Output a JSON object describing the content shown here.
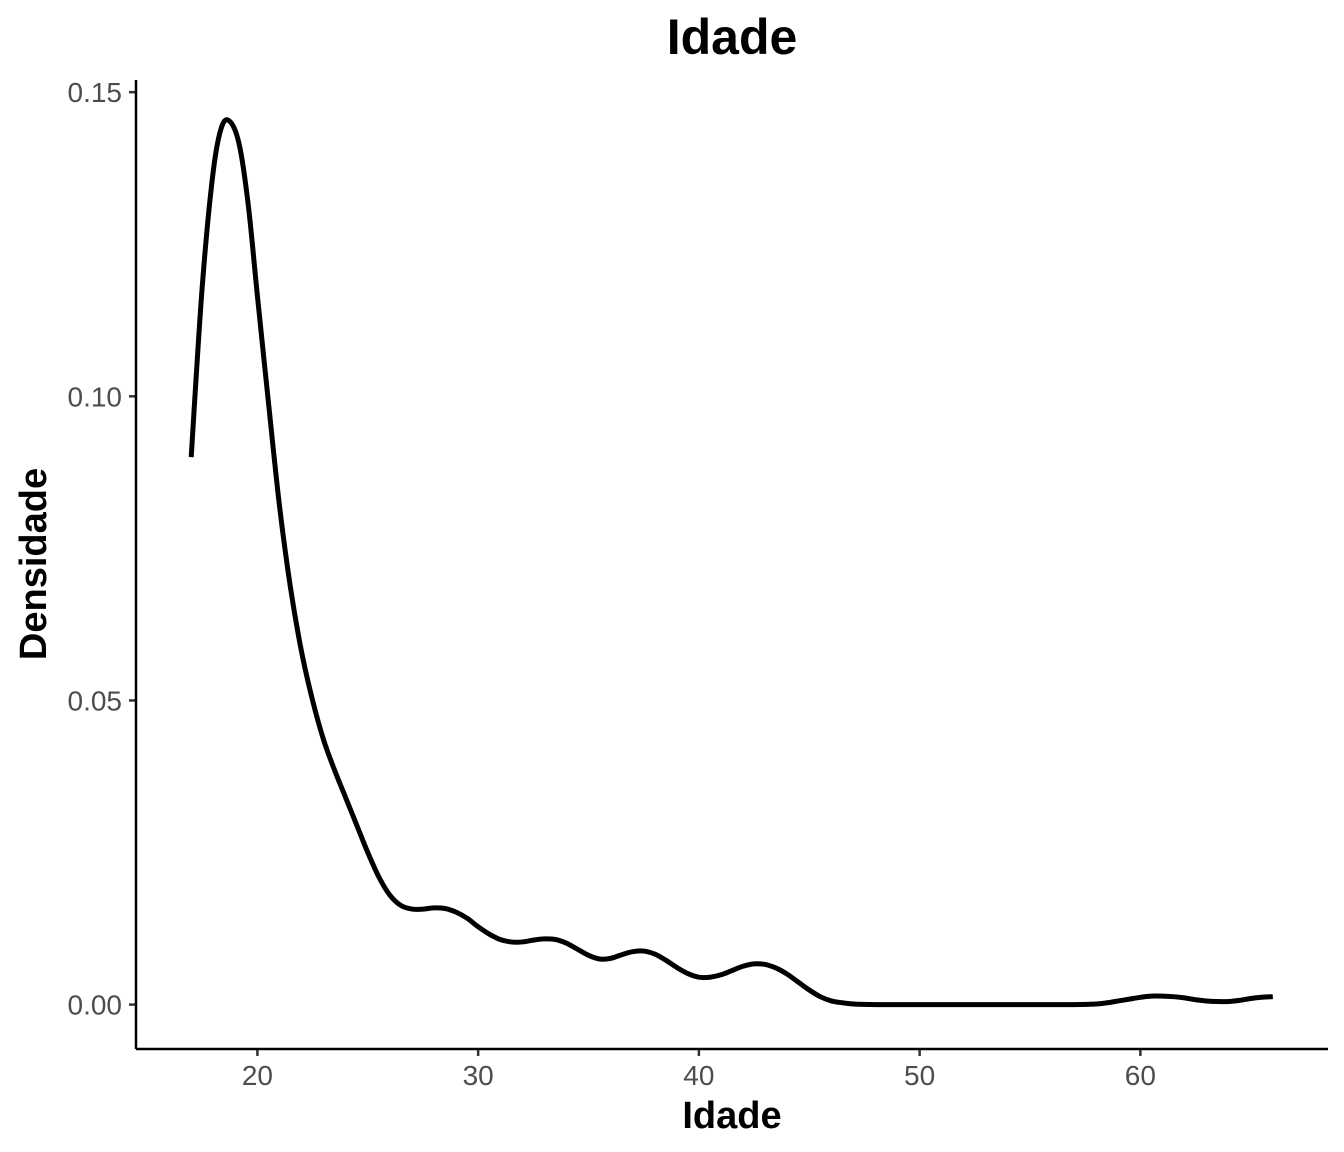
{
  "chart_data": {
    "type": "line",
    "title": "Idade",
    "xlabel": "Idade",
    "ylabel": "Densidade",
    "xlim": [
      14.5,
      68.5
    ],
    "ylim": [
      -0.0073,
      0.152
    ],
    "x_ticks": [
      {
        "value": 20,
        "label": "20"
      },
      {
        "value": 30,
        "label": "30"
      },
      {
        "value": 40,
        "label": "40"
      },
      {
        "value": 50,
        "label": "50"
      },
      {
        "value": 60,
        "label": "60"
      }
    ],
    "y_ticks": [
      {
        "value": 0.0,
        "label": "0.00"
      },
      {
        "value": 0.05,
        "label": "0.05"
      },
      {
        "value": 0.1,
        "label": "0.10"
      },
      {
        "value": 0.15,
        "label": "0.15"
      }
    ],
    "grid": false,
    "series": [
      {
        "color": "#000000",
        "x": [
          17.0,
          17.5,
          18.0,
          18.4,
          18.8,
          19.2,
          19.6,
          20.0,
          20.5,
          21.0,
          21.5,
          22.0,
          22.5,
          23.0,
          23.5,
          24.0,
          24.5,
          25.0,
          25.5,
          26.0,
          26.5,
          27.0,
          27.5,
          28.0,
          28.5,
          29.0,
          29.5,
          30.0,
          30.5,
          31.0,
          31.5,
          32.0,
          32.5,
          33.0,
          33.5,
          34.0,
          34.5,
          35.0,
          35.5,
          36.0,
          36.5,
          37.0,
          37.5,
          38.0,
          38.5,
          39.0,
          39.5,
          40.0,
          40.5,
          41.0,
          41.5,
          42.0,
          42.5,
          43.0,
          43.5,
          44.0,
          44.5,
          45.0,
          45.5,
          46.0,
          46.5,
          47.0,
          48.0,
          50.0,
          52.0,
          54.0,
          56.0,
          57.0,
          58.0,
          58.5,
          59.0,
          59.5,
          60.0,
          60.5,
          61.0,
          61.5,
          62.0,
          62.5,
          63.0,
          63.5,
          64.0,
          64.5,
          65.0,
          65.5,
          66.0
        ],
        "y": [
          0.09,
          0.118,
          0.137,
          0.1445,
          0.145,
          0.141,
          0.131,
          0.1165,
          0.099,
          0.082,
          0.0685,
          0.058,
          0.05,
          0.0435,
          0.0385,
          0.034,
          0.0295,
          0.025,
          0.021,
          0.018,
          0.0163,
          0.0157,
          0.0157,
          0.0159,
          0.0158,
          0.0152,
          0.0142,
          0.0128,
          0.0116,
          0.0107,
          0.0103,
          0.0103,
          0.0106,
          0.0108,
          0.0107,
          0.0101,
          0.0091,
          0.0081,
          0.0075,
          0.0076,
          0.0082,
          0.0087,
          0.0088,
          0.0083,
          0.0073,
          0.0061,
          0.0051,
          0.0045,
          0.0045,
          0.0049,
          0.0056,
          0.0063,
          0.0067,
          0.0066,
          0.006,
          0.005,
          0.0037,
          0.0024,
          0.0013,
          0.0006,
          0.0003,
          0.0001,
          0.0,
          0.0,
          0.0,
          0.0,
          0.0,
          0.0,
          0.0001,
          0.0003,
          0.0006,
          0.0009,
          0.0012,
          0.0014,
          0.0014,
          0.0013,
          0.0011,
          0.0008,
          0.0006,
          0.0005,
          0.0005,
          0.0007,
          0.001,
          0.0012,
          0.0013
        ]
      }
    ]
  }
}
